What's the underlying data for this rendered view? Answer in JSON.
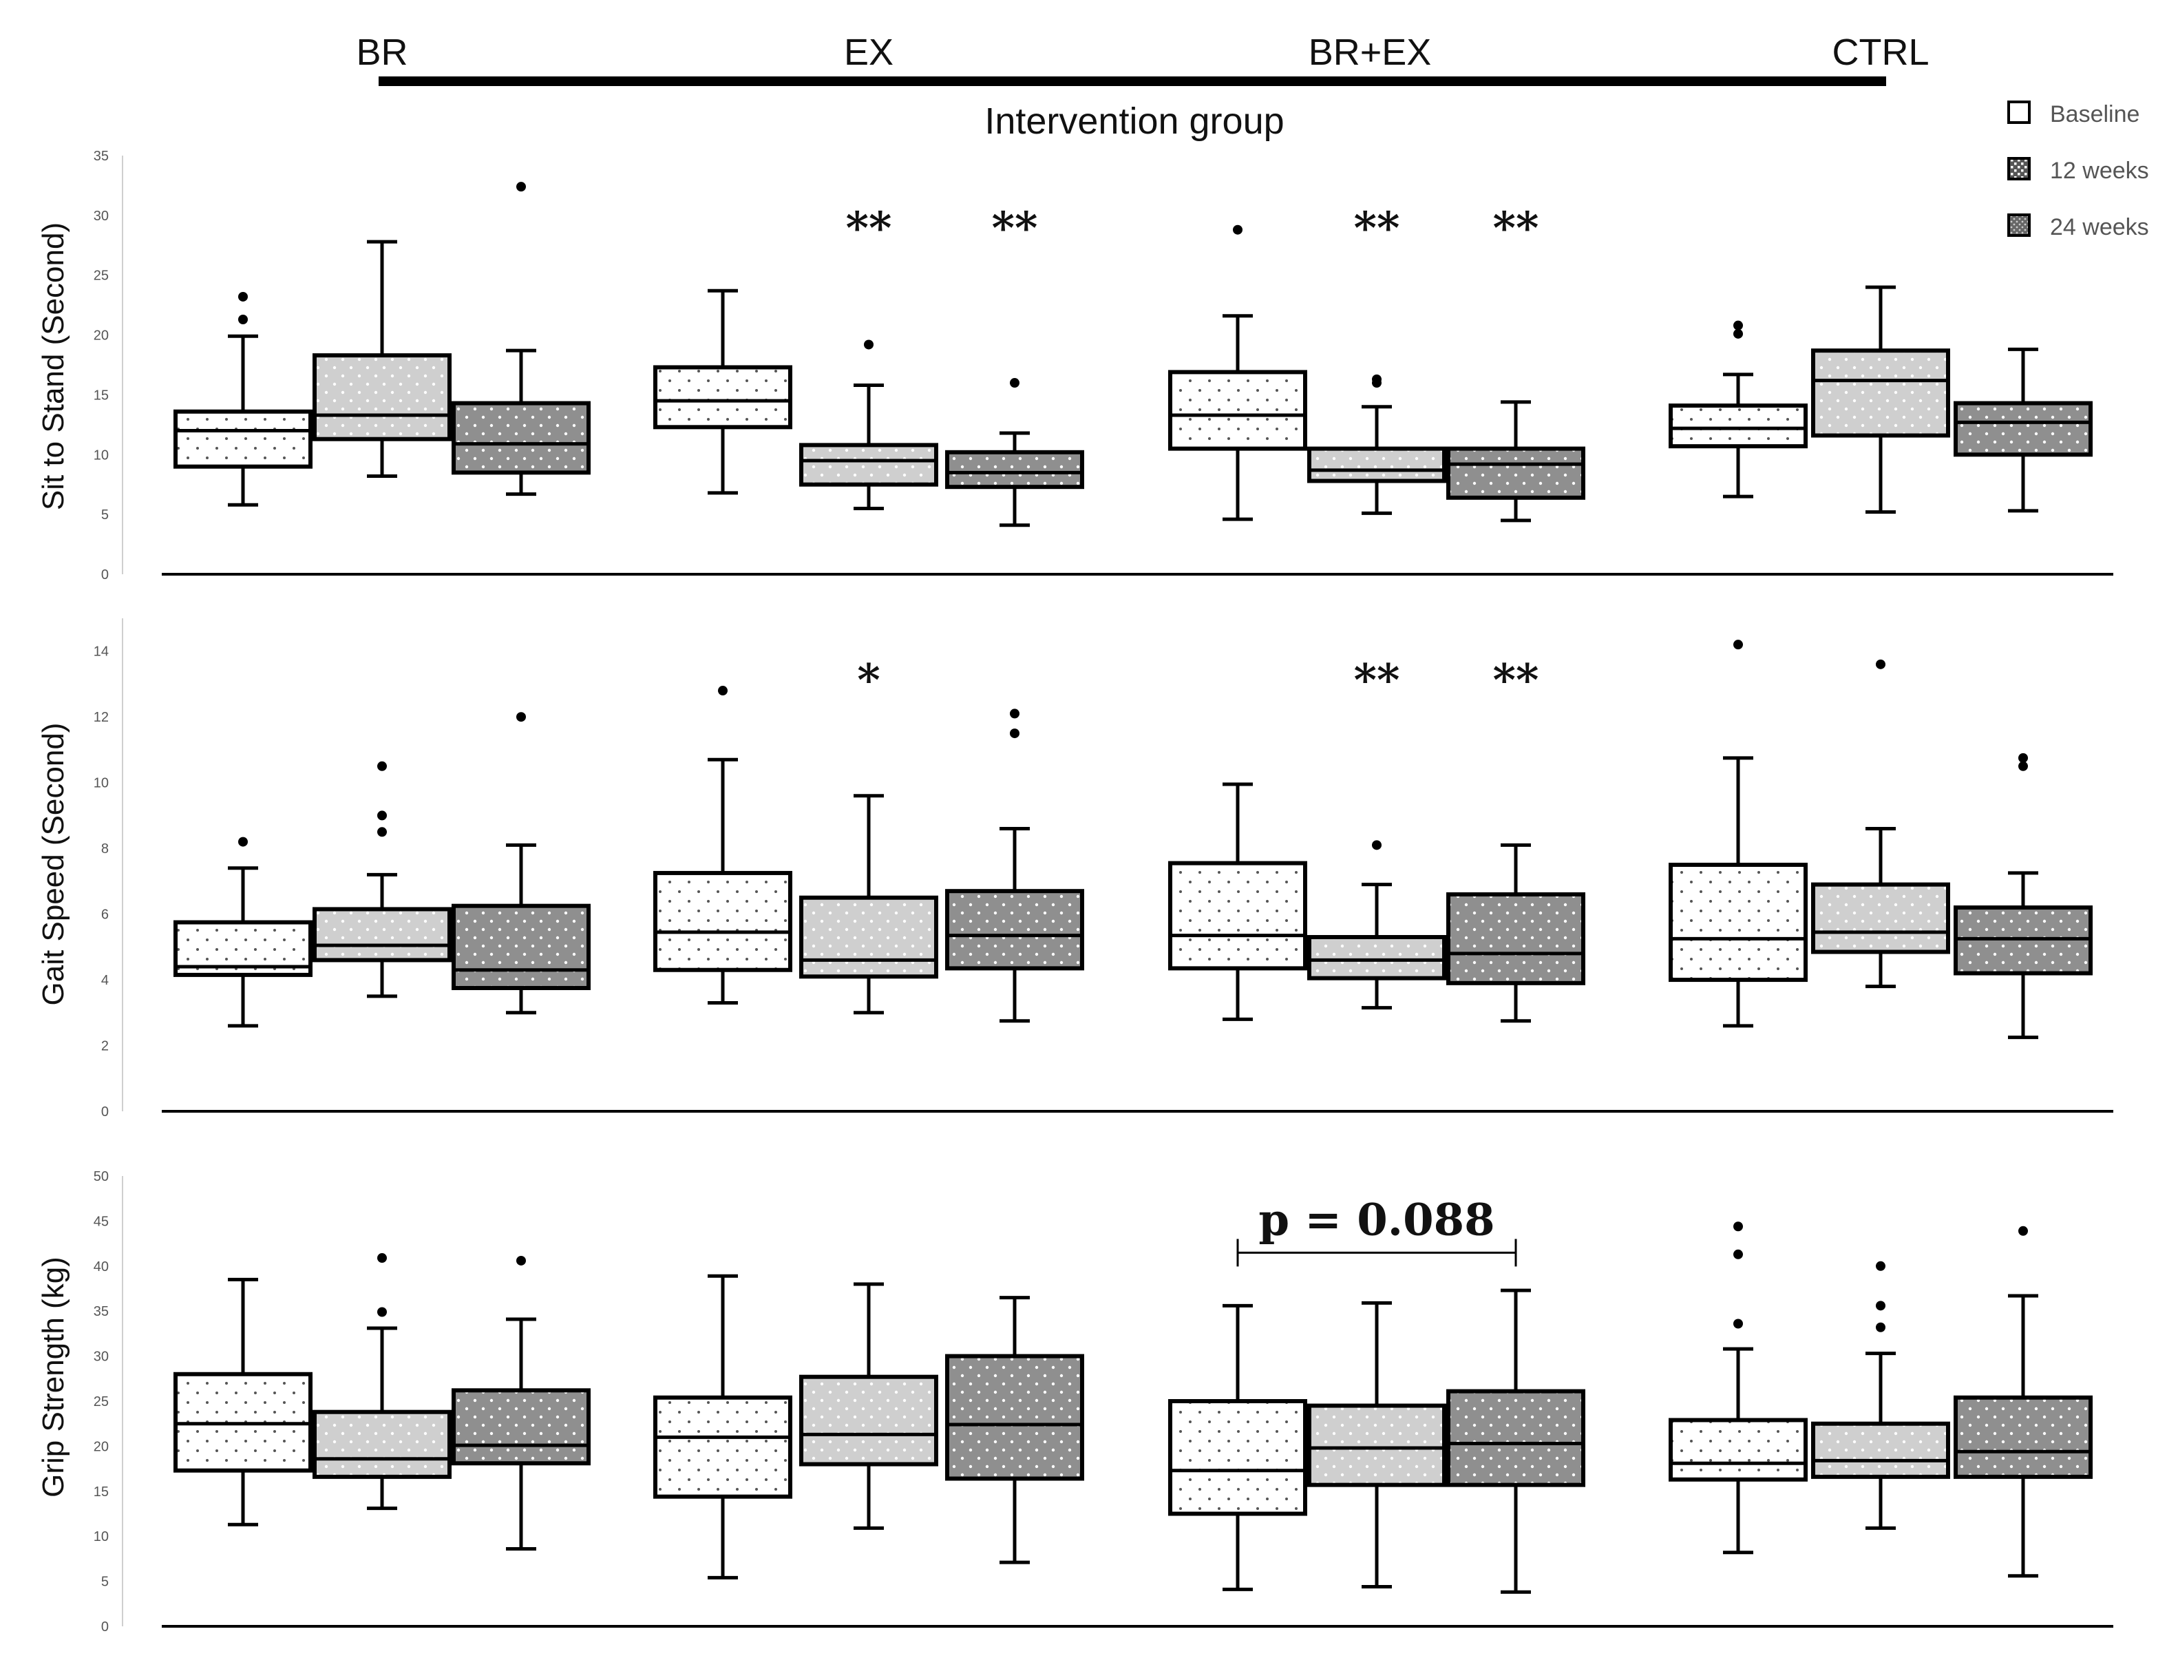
{
  "header": {
    "groups": [
      "BR",
      "EX",
      "BR+EX",
      "CTRL"
    ],
    "x_title": "Intervention group"
  },
  "legend": [
    {
      "label": "Baseline",
      "pattern": "baseline"
    },
    {
      "label": "12 weeks",
      "pattern": "w12"
    },
    {
      "label": "24 weeks",
      "pattern": "w24"
    }
  ],
  "colors": {
    "box_outline": "#000000",
    "fill_baseline": "#ffffff",
    "fill_12w": "#cfcfcf",
    "fill_24w": "#8f8f8f",
    "dots": "#ffffff"
  },
  "chart_data": [
    {
      "type": "box",
      "id": "sit_to_stand",
      "ylabel": "Sit to Stand (Second)",
      "ylim": [
        0,
        35
      ],
      "ticks": [
        0,
        5,
        10,
        15,
        20,
        25,
        30,
        35
      ],
      "categories": [
        "BR",
        "EX",
        "BR+EX",
        "CTRL"
      ],
      "series": [
        "Baseline",
        "12 weeks",
        "24 weeks"
      ],
      "boxes": [
        [
          {
            "min": 5.8,
            "q1": 9.0,
            "median": 12.0,
            "q3": 13.6,
            "max": 19.9,
            "outliers": [
              21.3,
              23.2
            ]
          },
          {
            "min": 8.2,
            "q1": 11.3,
            "median": 13.3,
            "q3": 18.3,
            "max": 27.8,
            "outliers": []
          },
          {
            "min": 6.7,
            "q1": 8.5,
            "median": 10.9,
            "q3": 14.3,
            "max": 18.7,
            "outliers": [
              32.4
            ]
          }
        ],
        [
          {
            "min": 6.8,
            "q1": 12.3,
            "median": 14.5,
            "q3": 17.3,
            "max": 23.7,
            "outliers": []
          },
          {
            "min": 5.5,
            "q1": 7.5,
            "median": 9.5,
            "q3": 10.8,
            "max": 15.8,
            "outliers": [
              19.2
            ]
          },
          {
            "min": 4.1,
            "q1": 7.3,
            "median": 8.5,
            "q3": 10.2,
            "max": 11.8,
            "outliers": [
              16.0
            ]
          }
        ],
        [
          {
            "min": 4.6,
            "q1": 10.5,
            "median": 13.3,
            "q3": 16.9,
            "max": 21.6,
            "outliers": [
              28.8
            ]
          },
          {
            "min": 5.1,
            "q1": 7.8,
            "median": 8.7,
            "q3": 10.5,
            "max": 14.0,
            "outliers": [
              16.0,
              16.3
            ]
          },
          {
            "min": 4.5,
            "q1": 6.4,
            "median": 9.2,
            "q3": 10.5,
            "max": 14.4,
            "outliers": []
          }
        ],
        [
          {
            "min": 6.5,
            "q1": 10.7,
            "median": 12.2,
            "q3": 14.1,
            "max": 16.7,
            "outliers": [
              20.1,
              20.8
            ]
          },
          {
            "min": 5.2,
            "q1": 11.6,
            "median": 16.2,
            "q3": 18.7,
            "max": 24.0,
            "outliers": []
          },
          {
            "min": 5.3,
            "q1": 10.0,
            "median": 12.7,
            "q3": 14.3,
            "max": 18.8,
            "outliers": []
          }
        ]
      ],
      "annotations": [
        {
          "text": "**",
          "category": 1,
          "series": 1,
          "y": 30
        },
        {
          "text": "**",
          "category": 1,
          "series": 2,
          "y": 30
        },
        {
          "text": "**",
          "category": 2,
          "series": 1,
          "y": 30
        },
        {
          "text": "**",
          "category": 2,
          "series": 2,
          "y": 30
        }
      ]
    },
    {
      "type": "box",
      "id": "gait_speed",
      "ylabel": "Gait Speed (Second)",
      "ylim": [
        0,
        15
      ],
      "ticks": [
        0,
        2,
        4,
        6,
        8,
        10,
        12,
        14
      ],
      "categories": [
        "BR",
        "EX",
        "BR+EX",
        "CTRL"
      ],
      "series": [
        "Baseline",
        "12 weeks",
        "24 weeks"
      ],
      "boxes": [
        [
          {
            "min": 2.6,
            "q1": 4.15,
            "median": 4.4,
            "q3": 5.75,
            "max": 7.4,
            "outliers": [
              8.2
            ]
          },
          {
            "min": 3.5,
            "q1": 4.6,
            "median": 5.05,
            "q3": 6.15,
            "max": 7.2,
            "outliers": [
              8.5,
              9.0,
              10.5
            ]
          },
          {
            "min": 3.0,
            "q1": 3.75,
            "median": 4.3,
            "q3": 6.25,
            "max": 8.1,
            "outliers": [
              12.0
            ]
          }
        ],
        [
          {
            "min": 3.3,
            "q1": 4.3,
            "median": 5.45,
            "q3": 7.25,
            "max": 10.7,
            "outliers": [
              12.8
            ]
          },
          {
            "min": 3.0,
            "q1": 4.1,
            "median": 4.6,
            "q3": 6.5,
            "max": 9.6,
            "outliers": []
          },
          {
            "min": 2.75,
            "q1": 4.35,
            "median": 5.35,
            "q3": 6.7,
            "max": 8.6,
            "outliers": [
              11.5,
              12.1
            ]
          }
        ],
        [
          {
            "min": 2.8,
            "q1": 4.35,
            "median": 5.35,
            "q3": 7.55,
            "max": 9.95,
            "outliers": []
          },
          {
            "min": 3.15,
            "q1": 4.05,
            "median": 4.6,
            "q3": 5.3,
            "max": 6.9,
            "outliers": [
              8.1
            ]
          },
          {
            "min": 2.75,
            "q1": 3.9,
            "median": 4.8,
            "q3": 6.6,
            "max": 8.1,
            "outliers": []
          }
        ],
        [
          {
            "min": 2.6,
            "q1": 4.0,
            "median": 5.25,
            "q3": 7.5,
            "max": 10.75,
            "outliers": [
              14.2
            ]
          },
          {
            "min": 3.8,
            "q1": 4.85,
            "median": 5.45,
            "q3": 6.9,
            "max": 8.6,
            "outliers": [
              13.6
            ]
          },
          {
            "min": 2.25,
            "q1": 4.2,
            "median": 5.25,
            "q3": 6.2,
            "max": 7.25,
            "outliers": [
              10.5,
              10.75
            ]
          }
        ]
      ],
      "annotations": [
        {
          "text": "*",
          "category": 1,
          "series": 1,
          "y": 13.5
        },
        {
          "text": "**",
          "category": 2,
          "series": 1,
          "y": 13.5
        },
        {
          "text": "**",
          "category": 2,
          "series": 2,
          "y": 13.5
        }
      ]
    },
    {
      "type": "box",
      "id": "grip_strength",
      "ylabel": "Grip Strength  (kg)",
      "ylim": [
        0,
        50
      ],
      "ticks": [
        0,
        5,
        10,
        15,
        20,
        25,
        30,
        35,
        40,
        45,
        50
      ],
      "categories": [
        "BR",
        "EX",
        "BR+EX",
        "CTRL"
      ],
      "series": [
        "Baseline",
        "12 weeks",
        "24 weeks"
      ],
      "boxes": [
        [
          {
            "min": 11.3,
            "q1": 17.3,
            "median": 22.5,
            "q3": 28.0,
            "max": 38.5,
            "outliers": []
          },
          {
            "min": 13.1,
            "q1": 16.6,
            "median": 18.6,
            "q3": 23.8,
            "max": 33.1,
            "outliers": [
              34.9,
              40.9
            ]
          },
          {
            "min": 8.6,
            "q1": 18.1,
            "median": 20.1,
            "q3": 26.2,
            "max": 34.1,
            "outliers": [
              40.6
            ]
          }
        ],
        [
          {
            "min": 5.4,
            "q1": 14.4,
            "median": 21.0,
            "q3": 25.4,
            "max": 38.9,
            "outliers": []
          },
          {
            "min": 10.9,
            "q1": 18.0,
            "median": 21.3,
            "q3": 27.7,
            "max": 38.0,
            "outliers": []
          },
          {
            "min": 7.1,
            "q1": 16.4,
            "median": 22.4,
            "q3": 30.0,
            "max": 36.5,
            "outliers": []
          }
        ],
        [
          {
            "min": 4.1,
            "q1": 12.5,
            "median": 17.3,
            "q3": 25.0,
            "max": 35.6,
            "outliers": []
          },
          {
            "min": 4.4,
            "q1": 15.7,
            "median": 19.8,
            "q3": 24.5,
            "max": 35.9,
            "outliers": []
          },
          {
            "min": 3.8,
            "q1": 15.7,
            "median": 20.3,
            "q3": 26.1,
            "max": 37.3,
            "outliers": []
          }
        ],
        [
          {
            "min": 8.2,
            "q1": 16.3,
            "median": 18.1,
            "q3": 22.9,
            "max": 30.8,
            "outliers": [
              33.6,
              41.3,
              44.4
            ]
          },
          {
            "min": 10.9,
            "q1": 16.6,
            "median": 18.4,
            "q3": 22.5,
            "max": 30.3,
            "outliers": [
              33.2,
              35.6,
              40.0
            ]
          },
          {
            "min": 5.6,
            "q1": 16.6,
            "median": 19.4,
            "q3": 25.4,
            "max": 36.7,
            "outliers": [
              43.9
            ]
          }
        ]
      ],
      "bracket": {
        "text": "p = 0.088",
        "category": 2,
        "from_series": 0,
        "to_series": 2,
        "y": 45
      }
    }
  ]
}
